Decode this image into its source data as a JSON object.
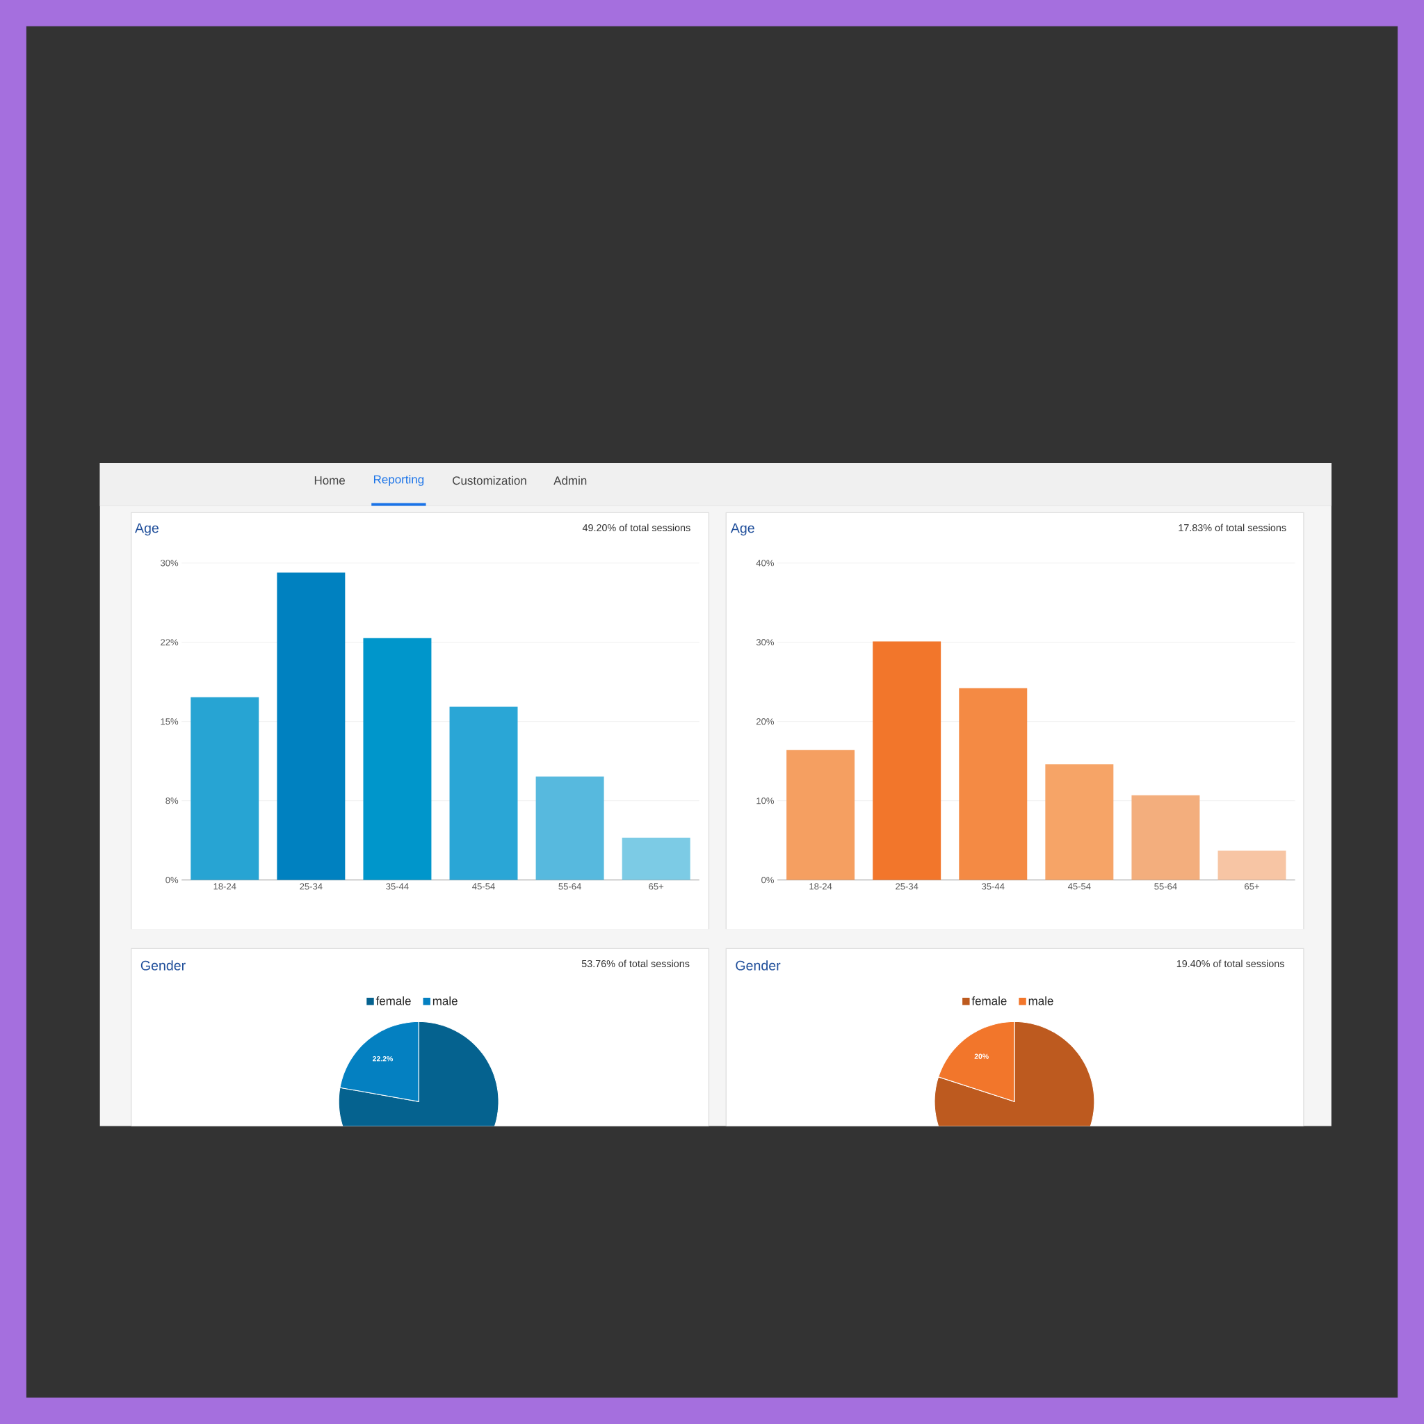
{
  "chart_data": [
    {
      "type": "other",
      "annotations": [
        "Home",
        "Reporting",
        "Customization",
        "Admin"
      ]
    },
    {
      "type": "bar",
      "title": "Age",
      "subtitle": "49.20% of total sessions",
      "categories": [
        "18-24",
        "25-34",
        "35-44",
        "45-54",
        "55-64",
        "65+"
      ],
      "values": [
        17.3,
        29.1,
        22.9,
        16.4,
        9.8,
        4.0
      ],
      "colors": [
        "#27a4d3",
        "#0081c0",
        "#0096cb",
        "#2aa6d6",
        "#57b9de",
        "#7ccbe5"
      ],
      "ylim": [
        0,
        30
      ],
      "yticks": [
        {
          "value": 0,
          "label": "0%"
        },
        {
          "value": 7.5,
          "label": "8%"
        },
        {
          "value": 15,
          "label": "15%"
        },
        {
          "value": 22.5,
          "label": "22%"
        },
        {
          "value": 30,
          "label": "30%"
        }
      ],
      "grid": "y",
      "legend": false
    },
    {
      "type": "bar",
      "title": "Age",
      "subtitle": "17.83% of total sessions",
      "categories": [
        "18-24",
        "25-34",
        "35-44",
        "45-54",
        "55-64",
        "65+"
      ],
      "values": [
        16.4,
        30.1,
        24.2,
        14.6,
        10.7,
        3.7
      ],
      "colors": [
        "#f59f61",
        "#f2762b",
        "#f48a44",
        "#f6a467",
        "#f3ae7d",
        "#f7c5a4"
      ],
      "ylim": [
        0,
        40
      ],
      "yticks": [
        {
          "value": 0,
          "label": "0%"
        },
        {
          "value": 10,
          "label": "10%"
        },
        {
          "value": 20,
          "label": "20%"
        },
        {
          "value": 30,
          "label": "30%"
        },
        {
          "value": 40,
          "label": "40%"
        }
      ],
      "grid": "y",
      "legend": false
    },
    {
      "type": "pie",
      "title": "Gender",
      "subtitle": "53.76% of total sessions",
      "categories": [
        "female",
        "male"
      ],
      "values": [
        77.8,
        22.2
      ],
      "value_labels": [
        null,
        "22.2%"
      ],
      "colors": [
        "#05628f",
        "#0480c1"
      ],
      "legend": "top"
    },
    {
      "type": "pie",
      "title": "Gender",
      "subtitle": "19.40% of total sessions",
      "categories": [
        "female",
        "male"
      ],
      "values": [
        80,
        20
      ],
      "value_labels": [
        null,
        "20%"
      ],
      "colors": [
        "#bd5a1f",
        "#f2762b"
      ],
      "legend": "top"
    }
  ]
}
